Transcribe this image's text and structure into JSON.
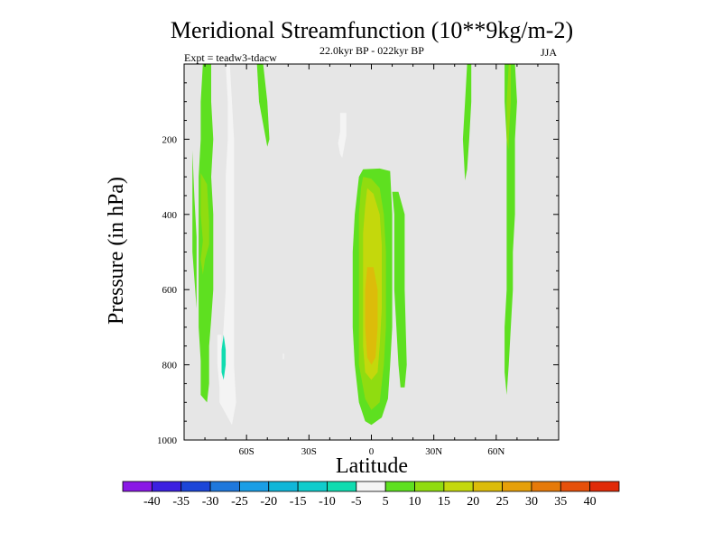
{
  "chart_data": {
    "type": "heatmap",
    "title": "Meridional Streamfunction (10**9kg/m-2)",
    "left_subtitle": "Expt = teadw3-tdacw",
    "center_subtitle": "22.0kyr BP - 022kyr BP",
    "right_subtitle": "JJA",
    "xlabel": "Latitude",
    "ylabel": "Pressure (in hPa)",
    "x_ticks": [
      "60S",
      "30S",
      "0",
      "30N",
      "60N"
    ],
    "x_tick_values": [
      -60,
      -30,
      0,
      30,
      60
    ],
    "y_ticks": [
      "200",
      "400",
      "600",
      "800",
      "1000"
    ],
    "y_tick_values": [
      200,
      400,
      600,
      800,
      1000
    ],
    "xlim": [
      -90,
      90
    ],
    "ylim": [
      0,
      1000
    ],
    "missing_color": "#e6e6e6",
    "colorbar": {
      "labels": [
        "-40",
        "-35",
        "-30",
        "-25",
        "-20",
        "-15",
        "-10",
        "-5",
        "5",
        "10",
        "15",
        "20",
        "25",
        "30",
        "35",
        "40"
      ],
      "colors": [
        "#8a18e6",
        "#3c20e0",
        "#1c46d8",
        "#1f78dc",
        "#1a9ee6",
        "#10b6d8",
        "#10cccc",
        "#10dcb0",
        "#f4f4f4",
        "#5ee020",
        "#90dc10",
        "#c4d80c",
        "#dcbc0a",
        "#e6a00a",
        "#e67a0a",
        "#e6500a",
        "#e02a08"
      ]
    },
    "contours": [
      {
        "level": 5,
        "points": [
          [
            -86,
            230
          ],
          [
            -85,
            360
          ],
          [
            -84,
            460
          ],
          [
            -84,
            650
          ],
          [
            -86,
            500
          ]
        ]
      },
      {
        "level": 5,
        "points": [
          [
            -81,
            0
          ],
          [
            -77,
            0
          ],
          [
            -77,
            100
          ],
          [
            -76,
            200
          ],
          [
            -77,
            300
          ],
          [
            -76,
            400
          ],
          [
            -76,
            500
          ],
          [
            -76,
            600
          ],
          [
            -77,
            680
          ],
          [
            -78,
            750
          ],
          [
            -78,
            850
          ],
          [
            -79,
            900
          ],
          [
            -82,
            880
          ],
          [
            -82,
            790
          ],
          [
            -83,
            700
          ],
          [
            -83,
            600
          ],
          [
            -83,
            500
          ],
          [
            -83,
            400
          ],
          [
            -83,
            300
          ],
          [
            -82,
            200
          ],
          [
            -82,
            100
          ]
        ]
      },
      {
        "level": 10,
        "points": [
          [
            -82,
            290
          ],
          [
            -79,
            320
          ],
          [
            -78,
            420
          ],
          [
            -78,
            480
          ],
          [
            -79,
            500
          ],
          [
            -80,
            520
          ],
          [
            -81,
            560
          ],
          [
            -82,
            520
          ],
          [
            -81,
            470
          ],
          [
            -82,
            400
          ]
        ]
      },
      {
        "level": -5,
        "points": [
          [
            -70,
            0
          ],
          [
            -68,
            0
          ],
          [
            -67,
            100
          ],
          [
            -66,
            200
          ],
          [
            -66,
            300
          ],
          [
            -66,
            400
          ],
          [
            -66,
            500
          ],
          [
            -66,
            600
          ],
          [
            -66,
            700
          ],
          [
            -66,
            800
          ],
          [
            -65,
            900
          ],
          [
            -67,
            960
          ],
          [
            -70,
            930
          ],
          [
            -73,
            900
          ],
          [
            -73,
            860
          ],
          [
            -74,
            800
          ],
          [
            -74,
            720
          ],
          [
            -72,
            720
          ],
          [
            -72,
            760
          ],
          [
            -71,
            700
          ],
          [
            -70,
            600
          ],
          [
            -70,
            500
          ],
          [
            -70,
            400
          ],
          [
            -70,
            300
          ],
          [
            -69,
            200
          ],
          [
            -69,
            100
          ]
        ]
      },
      {
        "level": -10,
        "points": [
          [
            -71,
            720
          ],
          [
            -70,
            760
          ],
          [
            -70,
            800
          ],
          [
            -71,
            840
          ],
          [
            -72,
            820
          ],
          [
            -72,
            760
          ]
        ]
      },
      {
        "level": 5,
        "points": [
          [
            -55,
            0
          ],
          [
            -52,
            0
          ],
          [
            -50,
            100
          ],
          [
            -49,
            200
          ],
          [
            -50,
            220
          ],
          [
            -52,
            160
          ],
          [
            -54,
            100
          ]
        ]
      },
      {
        "level": -5,
        "points": [
          [
            -15,
            130
          ],
          [
            -12,
            130
          ],
          [
            -12,
            160
          ],
          [
            -12,
            190
          ],
          [
            -13,
            220
          ],
          [
            -14,
            250
          ],
          [
            -15,
            240
          ],
          [
            -16,
            210
          ],
          [
            -15,
            180
          ],
          [
            -15,
            150
          ]
        ]
      },
      {
        "level": -5,
        "points": [
          [
            -42.5,
            770
          ],
          [
            -42,
            770
          ],
          [
            -42,
            785
          ],
          [
            -42.5,
            785
          ]
        ]
      },
      {
        "level": 5,
        "points": [
          [
            -4,
            280
          ],
          [
            4,
            278
          ],
          [
            9,
            285
          ],
          [
            10,
            400
          ],
          [
            10,
            500
          ],
          [
            10,
            700
          ],
          [
            9,
            800
          ],
          [
            8,
            890
          ],
          [
            5,
            940
          ],
          [
            0,
            960
          ],
          [
            -3,
            950
          ],
          [
            -6,
            900
          ],
          [
            -8,
            800
          ],
          [
            -9,
            700
          ],
          [
            -9,
            500
          ],
          [
            -8,
            400
          ],
          [
            -6,
            300
          ]
        ]
      },
      {
        "level": 5,
        "points": [
          [
            10,
            340
          ],
          [
            13,
            340
          ],
          [
            16,
            400
          ],
          [
            16,
            600
          ],
          [
            17,
            800
          ],
          [
            16,
            860
          ],
          [
            14,
            860
          ],
          [
            13,
            800
          ],
          [
            12,
            700
          ],
          [
            11,
            600
          ],
          [
            11,
            400
          ]
        ]
      },
      {
        "level": 10,
        "points": [
          [
            -4,
            300
          ],
          [
            0,
            305
          ],
          [
            4,
            330
          ],
          [
            6,
            400
          ],
          [
            7,
            500
          ],
          [
            7,
            600
          ],
          [
            7,
            700
          ],
          [
            6,
            800
          ],
          [
            4,
            900
          ],
          [
            0,
            920
          ],
          [
            -3,
            890
          ],
          [
            -6,
            800
          ],
          [
            -6,
            700
          ],
          [
            -6,
            600
          ],
          [
            -6,
            500
          ],
          [
            -6,
            400
          ],
          [
            -5,
            330
          ]
        ]
      },
      {
        "level": 15,
        "points": [
          [
            -2,
            330
          ],
          [
            1,
            345
          ],
          [
            4,
            400
          ],
          [
            5,
            480
          ],
          [
            5,
            560
          ],
          [
            5,
            650
          ],
          [
            4,
            750
          ],
          [
            3,
            820
          ],
          [
            0,
            840
          ],
          [
            -3,
            820
          ],
          [
            -4,
            750
          ],
          [
            -4,
            650
          ],
          [
            -4,
            550
          ],
          [
            -4,
            450
          ],
          [
            -3,
            380
          ]
        ]
      },
      {
        "level": 20,
        "points": [
          [
            -2,
            540
          ],
          [
            1,
            540
          ],
          [
            3,
            600
          ],
          [
            3,
            700
          ],
          [
            2,
            780
          ],
          [
            0,
            800
          ],
          [
            -2,
            780
          ],
          [
            -3,
            700
          ],
          [
            -3,
            600
          ]
        ]
      },
      {
        "level": 5,
        "points": [
          [
            46,
            0
          ],
          [
            48,
            0
          ],
          [
            48,
            100
          ],
          [
            47,
            200
          ],
          [
            46,
            280
          ],
          [
            45,
            310
          ],
          [
            44,
            200
          ],
          [
            45,
            100
          ]
        ]
      },
      {
        "level": 5,
        "points": [
          [
            64,
            0
          ],
          [
            69,
            0
          ],
          [
            70,
            100
          ],
          [
            69,
            200
          ],
          [
            69,
            300
          ],
          [
            69,
            400
          ],
          [
            68,
            500
          ],
          [
            68,
            600
          ],
          [
            67,
            700
          ],
          [
            66,
            800
          ],
          [
            65,
            880
          ],
          [
            64,
            820
          ],
          [
            64,
            700
          ],
          [
            65,
            600
          ],
          [
            65,
            500
          ],
          [
            65,
            400
          ],
          [
            65,
            300
          ],
          [
            65,
            200
          ],
          [
            64,
            100
          ]
        ]
      },
      {
        "level": 10,
        "points": [
          [
            66,
            0
          ],
          [
            67,
            0
          ],
          [
            67,
            100
          ],
          [
            66,
            200
          ],
          [
            66,
            230
          ],
          [
            65,
            200
          ],
          [
            65,
            100
          ]
        ]
      }
    ]
  }
}
